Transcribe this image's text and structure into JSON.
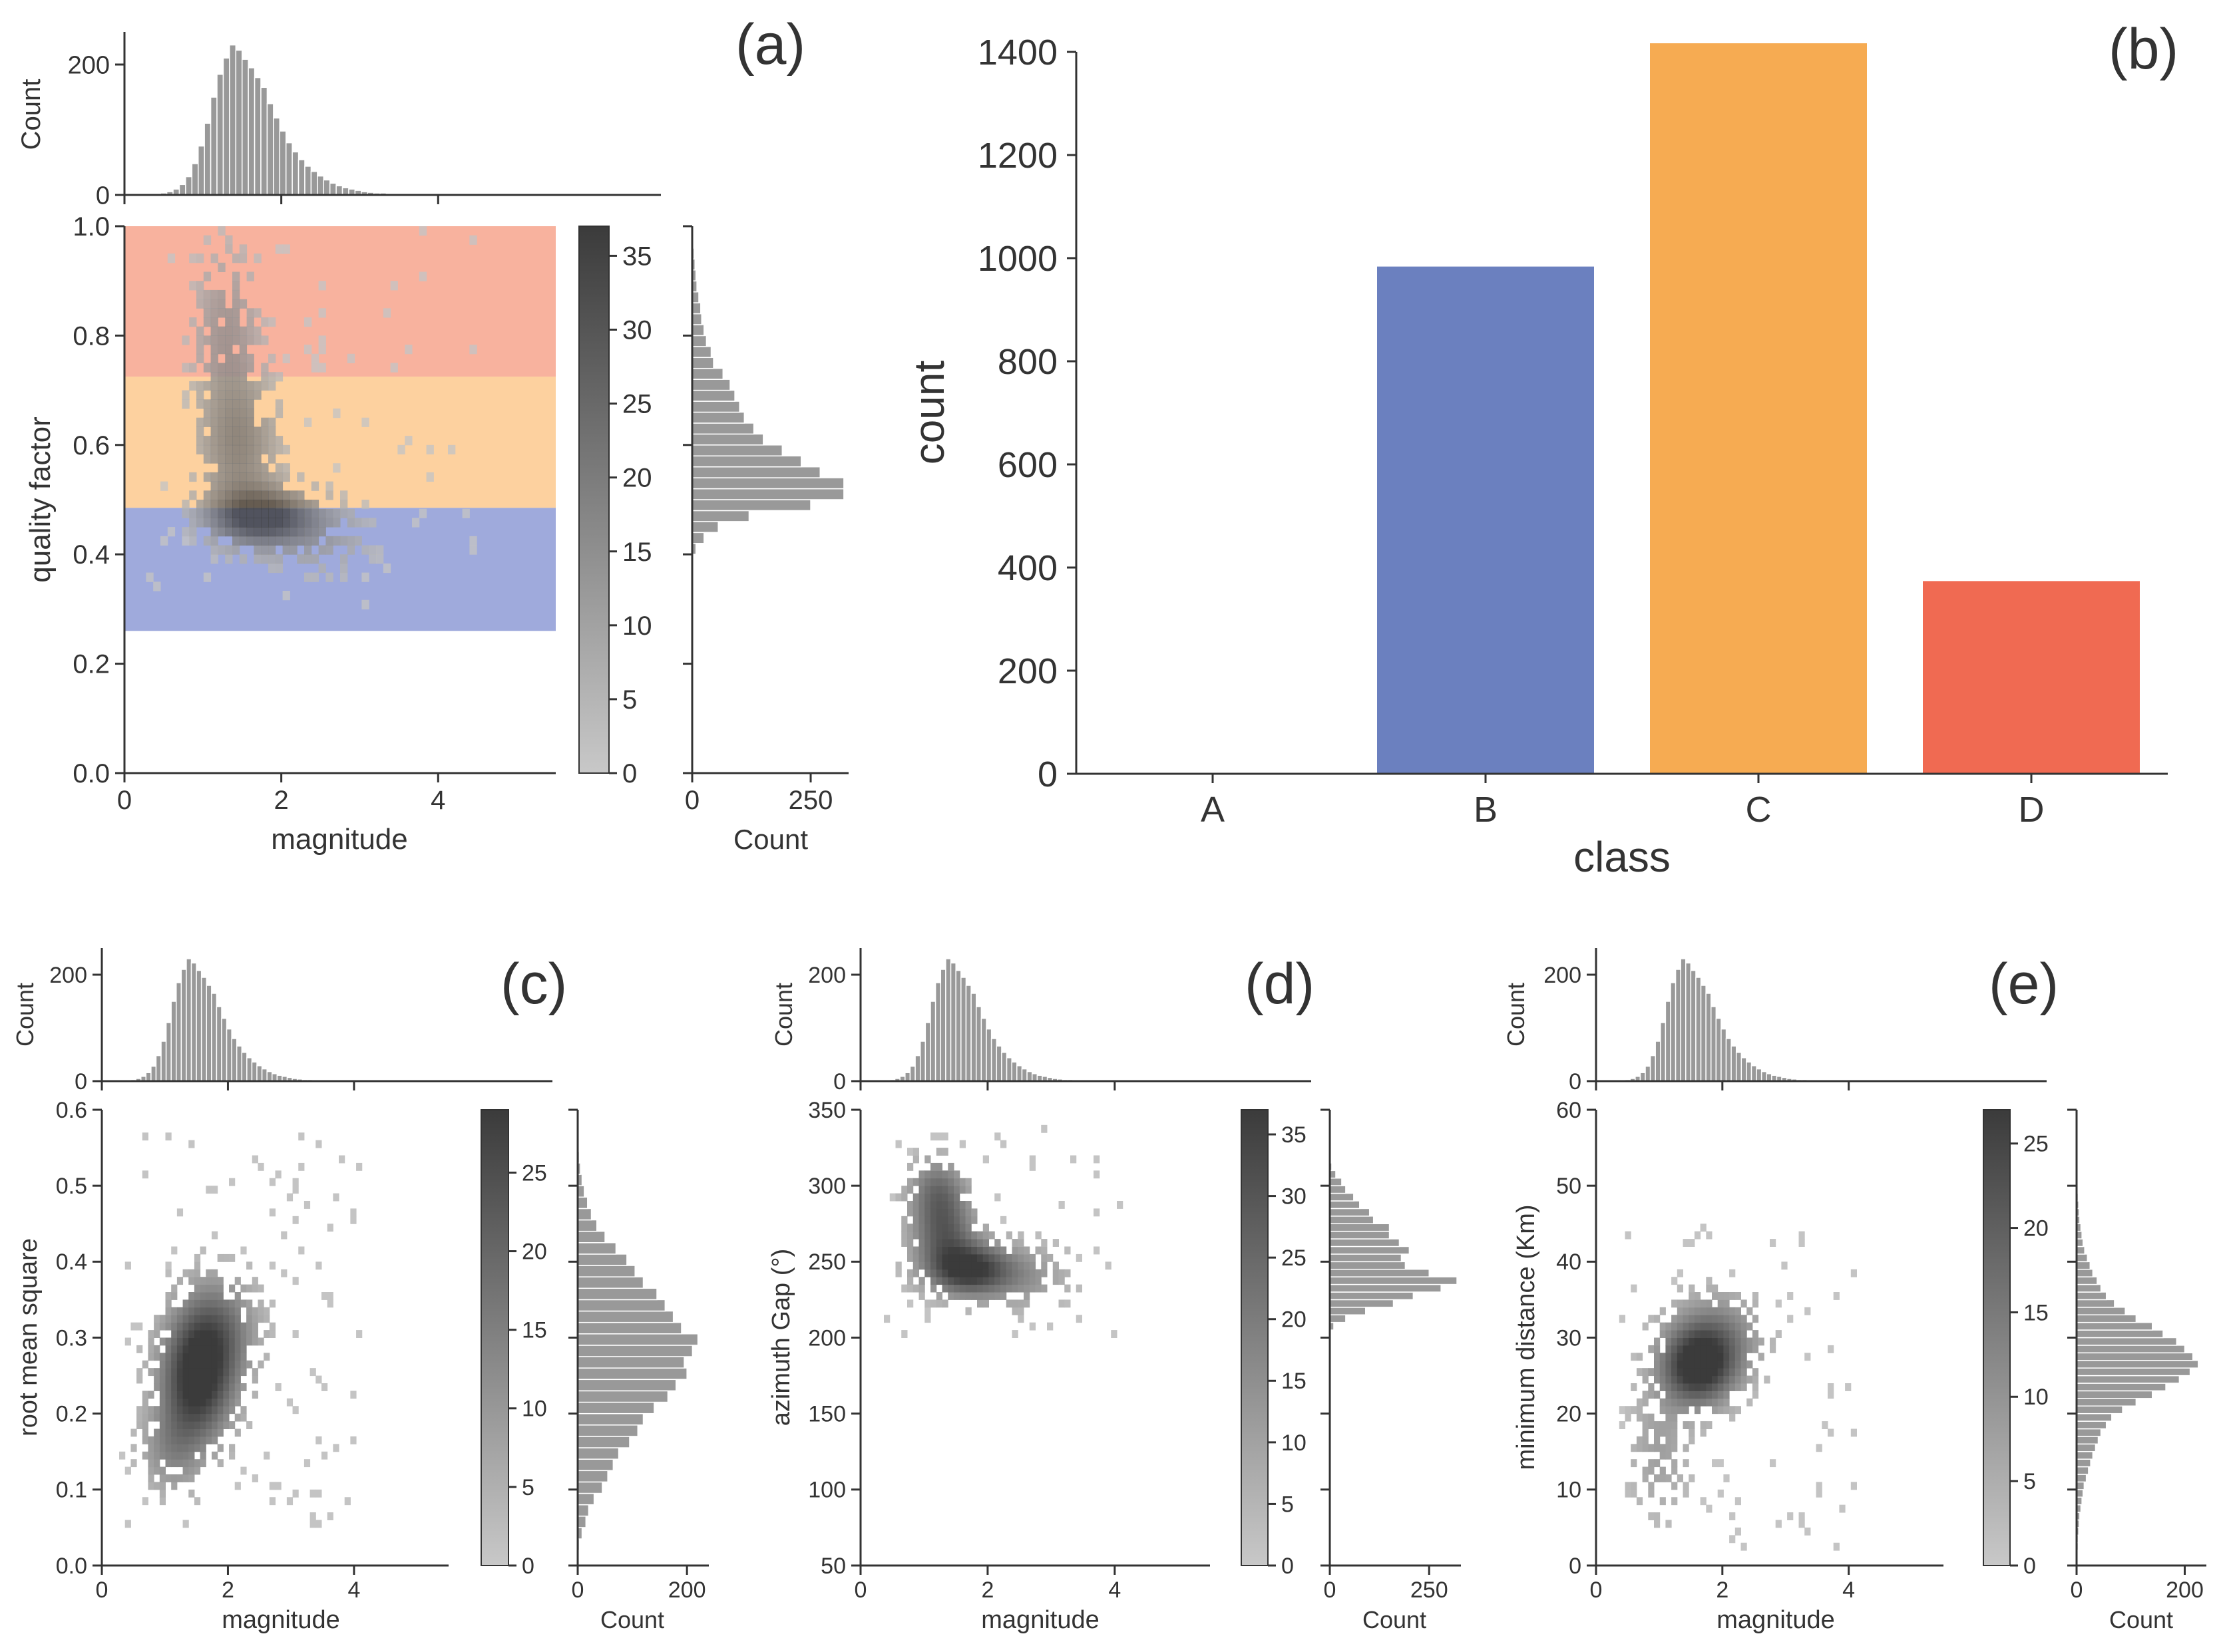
{
  "figure": {
    "panel_labels": [
      "(a)",
      "(b)",
      "(c)",
      "(d)",
      "(e)"
    ],
    "colors": {
      "hist": "#999999",
      "hist_edge": "#ffffff",
      "axis": "#333333",
      "class_B": "#6b80bf",
      "class_C": "#f6ab52",
      "class_D": "#f06a52",
      "band_high": "#f7a48d",
      "band_mid": "#fdc98e",
      "band_low": "#8e9bd6",
      "cmap_low": "#c8c8c8",
      "cmap_high": "#3b3b3b"
    }
  },
  "chart_data": [
    {
      "id": "a",
      "panel_label": "(a)",
      "type": "heatmap",
      "title": "",
      "xlabel": "magnitude",
      "ylabel": "quality factor",
      "xlim": [
        0,
        5.5
      ],
      "ylim": [
        0,
        1.0
      ],
      "xticks": [
        0,
        2,
        4
      ],
      "xtick_labels": [
        "0",
        "2",
        "4"
      ],
      "yticks": [
        0.0,
        0.2,
        0.4,
        0.6,
        0.8,
        1.0
      ],
      "ytick_labels": [
        "0.0",
        "0.2",
        "0.4",
        "0.6",
        "0.8",
        "1.0"
      ],
      "bands": [
        {
          "class": "D",
          "from": 0.725,
          "to": 1.0
        },
        {
          "class": "C",
          "from": 0.485,
          "to": 0.725
        },
        {
          "class": "B",
          "from": 0.26,
          "to": 0.485
        }
      ],
      "density": {
        "clusters": [
          {
            "x": 1.75,
            "y": 0.47,
            "sx": 0.45,
            "sy": 0.035,
            "w": 1.0
          },
          {
            "x": 1.45,
            "y": 0.6,
            "sx": 0.35,
            "sy": 0.09,
            "w": 0.55
          },
          {
            "x": 1.3,
            "y": 0.82,
            "sx": 0.3,
            "sy": 0.1,
            "w": 0.35
          },
          {
            "x": 2.5,
            "y": 0.43,
            "sx": 0.5,
            "sy": 0.05,
            "w": 0.25
          }
        ],
        "xrange": [
          0.15,
          4.5
        ],
        "yrange": [
          0.3,
          1.0
        ]
      },
      "colorbar": {
        "min": 0,
        "max": 37,
        "ticks": [
          0,
          5,
          10,
          15,
          20,
          25,
          30,
          35
        ],
        "tick_labels": [
          "0",
          "5",
          "10",
          "15",
          "20",
          "25",
          "30",
          "35"
        ]
      },
      "top_hist": {
        "ylabel": "Count",
        "ymax": 250,
        "yticks": [
          0,
          200
        ],
        "ytick_labels": [
          "0",
          "200"
        ],
        "bin_start": 0.3,
        "bin_width": 0.08,
        "counts": [
          1,
          2,
          3,
          5,
          9,
          16,
          28,
          48,
          75,
          110,
          150,
          185,
          210,
          230,
          222,
          208,
          195,
          180,
          165,
          140,
          118,
          98,
          80,
          66,
          54,
          44,
          36,
          29,
          23,
          18,
          14,
          11,
          9,
          7,
          5,
          4,
          3,
          3,
          2,
          2,
          2,
          1,
          1,
          1,
          1
        ]
      },
      "right_hist": {
        "xlabel": "Count",
        "xmax": 330,
        "xticks": [
          0,
          250
        ],
        "xtick_labels": [
          "0",
          "250"
        ],
        "bin_start": 0.4,
        "bin_width": 0.02,
        "counts": [
          8,
          25,
          55,
          120,
          250,
          320,
          320,
          270,
          230,
          190,
          150,
          130,
          110,
          100,
          90,
          80,
          65,
          45,
          40,
          30,
          25,
          20,
          18,
          14,
          10,
          8,
          6,
          4,
          2,
          1,
          1
        ]
      }
    },
    {
      "id": "b",
      "panel_label": "(b)",
      "type": "bar",
      "title": "",
      "xlabel": "class",
      "ylabel": "count",
      "categories": [
        "A",
        "B",
        "C",
        "D"
      ],
      "values": [
        0,
        985,
        1418,
        375
      ],
      "ylim": [
        0,
        1400
      ],
      "yticks": [
        0,
        200,
        400,
        600,
        800,
        1000,
        1200,
        1400
      ],
      "ytick_labels": [
        "0",
        "200",
        "400",
        "600",
        "800",
        "1000",
        "1200",
        "1400"
      ]
    },
    {
      "id": "c",
      "panel_label": "(c)",
      "type": "heatmap",
      "xlabel": "magnitude",
      "ylabel": "root mean square",
      "xlim": [
        0,
        5.5
      ],
      "ylim": [
        0,
        0.6
      ],
      "xticks": [
        0,
        2,
        4
      ],
      "xtick_labels": [
        "0",
        "2",
        "4"
      ],
      "yticks": [
        0.0,
        0.1,
        0.2,
        0.3,
        0.4,
        0.5,
        0.6
      ],
      "ytick_labels": [
        "0.0",
        "0.1",
        "0.2",
        "0.3",
        "0.4",
        "0.5",
        "0.6"
      ],
      "density": {
        "clusters": [
          {
            "x": 1.5,
            "y": 0.24,
            "sx": 0.4,
            "sy": 0.055,
            "w": 1.0
          },
          {
            "x": 1.8,
            "y": 0.31,
            "sx": 0.45,
            "sy": 0.05,
            "w": 0.6
          },
          {
            "x": 1.1,
            "y": 0.15,
            "sx": 0.35,
            "sy": 0.04,
            "w": 0.35
          }
        ],
        "xrange": [
          0.3,
          4.1
        ],
        "yrange": [
          0.05,
          0.58
        ]
      },
      "colorbar": {
        "min": 0,
        "max": 29,
        "ticks": [
          0,
          5,
          10,
          15,
          20,
          25
        ],
        "tick_labels": [
          "0",
          "5",
          "10",
          "15",
          "20",
          "25"
        ]
      },
      "top_hist": {
        "ylabel": "Count",
        "ymax": 250,
        "yticks": [
          0,
          200
        ],
        "ytick_labels": [
          "0",
          "200"
        ],
        "bin_start": 0.3,
        "bin_width": 0.08,
        "counts": [
          1,
          2,
          3,
          5,
          9,
          16,
          28,
          48,
          75,
          110,
          150,
          185,
          210,
          230,
          222,
          208,
          195,
          180,
          165,
          140,
          118,
          98,
          80,
          66,
          54,
          44,
          36,
          29,
          23,
          18,
          14,
          11,
          9,
          7,
          5,
          4,
          3,
          3,
          2,
          2,
          2,
          1,
          1,
          1,
          1
        ]
      },
      "right_hist": {
        "xlabel": "Count",
        "xmax": 240,
        "xticks": [
          0,
          200
        ],
        "xtick_labels": [
          "0",
          "200"
        ],
        "bin_start": 0.02,
        "bin_width": 0.015,
        "counts": [
          3,
          8,
          15,
          20,
          30,
          45,
          55,
          65,
          75,
          95,
          110,
          120,
          140,
          165,
          180,
          200,
          195,
          210,
          220,
          190,
          175,
          160,
          145,
          120,
          105,
          90,
          70,
          50,
          35,
          25,
          18,
          12,
          8,
          5,
          3,
          2
        ]
      }
    },
    {
      "id": "d",
      "panel_label": "(d)",
      "type": "heatmap",
      "xlabel": "magnitude",
      "ylabel": "azimuth Gap (°)",
      "xlim": [
        0,
        5.5
      ],
      "ylim": [
        50,
        350
      ],
      "xticks": [
        0,
        2,
        4
      ],
      "xtick_labels": [
        "0",
        "2",
        "4"
      ],
      "yticks": [
        50,
        100,
        150,
        200,
        250,
        300,
        350
      ],
      "ytick_labels": [
        "50",
        "100",
        "150",
        "200",
        "250",
        "300",
        "350"
      ],
      "density": {
        "clusters": [
          {
            "x": 1.7,
            "y": 245,
            "sx": 0.45,
            "sy": 12,
            "w": 1.0
          },
          {
            "x": 1.3,
            "y": 272,
            "sx": 0.35,
            "sy": 18,
            "w": 0.7
          },
          {
            "x": 1.2,
            "y": 300,
            "sx": 0.3,
            "sy": 14,
            "w": 0.45
          },
          {
            "x": 2.6,
            "y": 240,
            "sx": 0.5,
            "sy": 15,
            "w": 0.3
          }
        ],
        "xrange": [
          0.4,
          4.2
        ],
        "yrange": [
          200,
          340
        ]
      },
      "colorbar": {
        "min": 0,
        "max": 37,
        "ticks": [
          0,
          5,
          10,
          15,
          20,
          25,
          30,
          35
        ],
        "tick_labels": [
          "0",
          "5",
          "10",
          "15",
          "20",
          "25",
          "30",
          "35"
        ]
      },
      "top_hist": {
        "ylabel": "Count",
        "ymax": 250,
        "yticks": [
          0,
          200
        ],
        "ytick_labels": [
          "0",
          "200"
        ],
        "bin_start": 0.3,
        "bin_width": 0.08,
        "counts": [
          1,
          2,
          3,
          5,
          9,
          16,
          28,
          48,
          75,
          110,
          150,
          185,
          210,
          230,
          222,
          208,
          195,
          180,
          165,
          140,
          118,
          98,
          80,
          66,
          54,
          44,
          36,
          29,
          23,
          18,
          14,
          11,
          9,
          7,
          5,
          4,
          3,
          3,
          2,
          2,
          2,
          1,
          1,
          1,
          1
        ]
      },
      "right_hist": {
        "xlabel": "Count",
        "xmax": 330,
        "xticks": [
          0,
          250
        ],
        "xtick_labels": [
          "0",
          "250"
        ],
        "bin_start": 205,
        "bin_width": 5,
        "counts": [
          10,
          40,
          90,
          160,
          210,
          280,
          320,
          250,
          190,
          180,
          200,
          175,
          150,
          150,
          110,
          100,
          75,
          60,
          40,
          30,
          15,
          5,
          2
        ]
      }
    },
    {
      "id": "e",
      "panel_label": "(e)",
      "type": "heatmap",
      "xlabel": "magnitude",
      "ylabel": "minimum distance (Km)",
      "xlim": [
        0,
        5.5
      ],
      "ylim": [
        0,
        60
      ],
      "xticks": [
        0,
        2,
        4
      ],
      "xtick_labels": [
        "0",
        "2",
        "4"
      ],
      "yticks": [
        0,
        10,
        20,
        30,
        40,
        50,
        60
      ],
      "ytick_labels": [
        "0",
        "10",
        "20",
        "30",
        "40",
        "50",
        "60"
      ],
      "density": {
        "clusters": [
          {
            "x": 1.6,
            "y": 26,
            "sx": 0.4,
            "sy": 3.5,
            "w": 1.0
          },
          {
            "x": 1.9,
            "y": 30,
            "sx": 0.5,
            "sy": 4,
            "w": 0.5
          },
          {
            "x": 1.0,
            "y": 15,
            "sx": 0.35,
            "sy": 6,
            "w": 0.25
          }
        ],
        "xrange": [
          0.3,
          4.2
        ],
        "yrange": [
          2,
          45
        ]
      },
      "colorbar": {
        "min": 0,
        "max": 27,
        "ticks": [
          0,
          5,
          10,
          15,
          20,
          25
        ],
        "tick_labels": [
          "0",
          "5",
          "10",
          "15",
          "20",
          "25"
        ]
      },
      "top_hist": {
        "ylabel": "Count",
        "ymax": 250,
        "yticks": [
          0,
          200
        ],
        "ytick_labels": [
          "0",
          "200"
        ],
        "bin_start": 0.3,
        "bin_width": 0.08,
        "counts": [
          1,
          2,
          3,
          5,
          9,
          16,
          28,
          48,
          75,
          110,
          150,
          185,
          210,
          230,
          222,
          208,
          195,
          180,
          165,
          140,
          118,
          98,
          80,
          66,
          54,
          44,
          36,
          29,
          23,
          18,
          14,
          11,
          9,
          7,
          5,
          4,
          3,
          3,
          2,
          2,
          2,
          1,
          1,
          1,
          1
        ]
      },
      "right_hist": {
        "xlabel": "Count",
        "xmax": 240,
        "xticks": [
          0,
          200
        ],
        "xtick_labels": [
          "0",
          "200"
        ],
        "bin_start": 1,
        "bin_width": 1,
        "counts": [
          2,
          3,
          3,
          4,
          5,
          6,
          8,
          10,
          12,
          14,
          18,
          22,
          26,
          30,
          35,
          40,
          45,
          55,
          65,
          85,
          110,
          140,
          165,
          190,
          210,
          225,
          215,
          200,
          185,
          160,
          140,
          110,
          90,
          70,
          55,
          45,
          38,
          30,
          25,
          20,
          15,
          12,
          10,
          8,
          6,
          5,
          4,
          3,
          2,
          2,
          1,
          1
        ]
      }
    }
  ]
}
